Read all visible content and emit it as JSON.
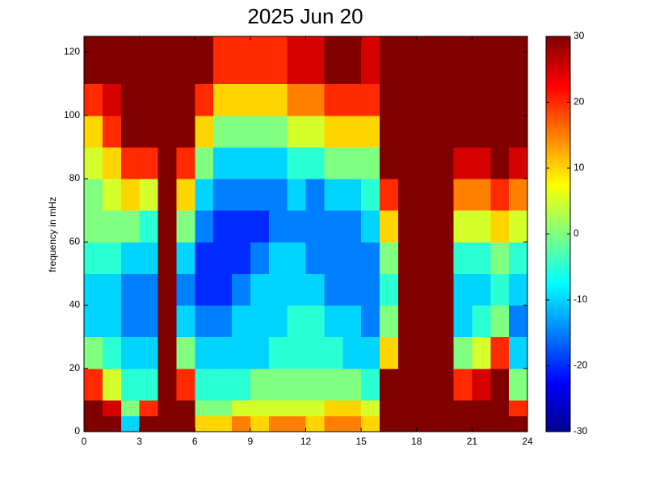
{
  "chart_data": {
    "type": "heatmap",
    "title": "2025 Jun 20",
    "y_label": "frequency in mHz",
    "colormap": "jet",
    "x_bins": [
      0,
      1,
      2,
      3,
      4,
      5,
      6,
      7,
      8,
      9,
      10,
      11,
      12,
      13,
      14,
      15,
      16,
      17,
      18,
      19,
      20,
      21,
      22,
      23,
      24
    ],
    "y_bins": [
      0,
      5,
      10,
      20,
      30,
      40,
      50,
      60,
      70,
      80,
      90,
      100,
      110,
      125
    ],
    "values": [
      [
        30,
        30,
        -10,
        30,
        30,
        30,
        10,
        10,
        15,
        10,
        15,
        15,
        10,
        15,
        15,
        10,
        30,
        30,
        30,
        30,
        30,
        30,
        30,
        30
      ],
      [
        30,
        25,
        0,
        20,
        30,
        30,
        0,
        0,
        5,
        5,
        5,
        5,
        5,
        10,
        10,
        5,
        30,
        30,
        30,
        30,
        30,
        30,
        30,
        20
      ],
      [
        20,
        5,
        -5,
        -5,
        30,
        20,
        -5,
        -5,
        -5,
        0,
        0,
        0,
        0,
        0,
        0,
        -5,
        30,
        30,
        30,
        30,
        20,
        25,
        30,
        0
      ],
      [
        0,
        -5,
        -10,
        -10,
        30,
        0,
        -10,
        -10,
        -10,
        -10,
        -5,
        -5,
        -5,
        -5,
        -10,
        -10,
        10,
        30,
        30,
        30,
        0,
        5,
        20,
        -10
      ],
      [
        -10,
        -10,
        -15,
        -15,
        30,
        -10,
        -15,
        -15,
        -10,
        -10,
        -10,
        -5,
        -5,
        -10,
        -10,
        -15,
        0,
        30,
        30,
        30,
        -10,
        -5,
        0,
        -15
      ],
      [
        -10,
        -10,
        -15,
        -15,
        30,
        -15,
        -20,
        -20,
        -15,
        -10,
        -10,
        -10,
        -10,
        -15,
        -15,
        -15,
        -5,
        30,
        30,
        30,
        -10,
        -10,
        -5,
        -10
      ],
      [
        -5,
        -5,
        -10,
        -10,
        30,
        -10,
        -20,
        -20,
        -20,
        -15,
        -10,
        -10,
        -15,
        -15,
        -15,
        -15,
        0,
        30,
        30,
        30,
        -5,
        -5,
        0,
        -5
      ],
      [
        0,
        0,
        0,
        -5,
        30,
        0,
        -15,
        -20,
        -20,
        -20,
        -15,
        -15,
        -15,
        -15,
        -15,
        -10,
        10,
        30,
        30,
        30,
        5,
        5,
        10,
        5
      ],
      [
        0,
        5,
        10,
        5,
        30,
        10,
        -10,
        -15,
        -15,
        -15,
        -15,
        -10,
        -15,
        -10,
        -10,
        -5,
        20,
        30,
        30,
        30,
        15,
        15,
        20,
        15
      ],
      [
        5,
        10,
        20,
        20,
        30,
        20,
        0,
        -10,
        -10,
        -10,
        -10,
        -5,
        -5,
        0,
        0,
        0,
        30,
        30,
        30,
        30,
        25,
        25,
        30,
        25
      ],
      [
        10,
        20,
        30,
        30,
        30,
        30,
        10,
        0,
        0,
        0,
        0,
        5,
        5,
        10,
        10,
        10,
        30,
        30,
        30,
        30,
        30,
        30,
        30,
        30
      ],
      [
        20,
        25,
        30,
        30,
        30,
        30,
        20,
        10,
        10,
        10,
        10,
        15,
        15,
        20,
        20,
        20,
        30,
        30,
        30,
        30,
        30,
        30,
        30,
        30
      ],
      [
        30,
        30,
        30,
        30,
        30,
        30,
        30,
        20,
        20,
        20,
        20,
        25,
        25,
        30,
        30,
        25,
        30,
        30,
        30,
        30,
        30,
        30,
        30,
        30
      ]
    ],
    "xlim": [
      0,
      24
    ],
    "xticks": [
      0,
      3,
      6,
      9,
      12,
      15,
      18,
      21,
      24
    ],
    "ylim": [
      0,
      125
    ],
    "yticks": [
      0,
      20,
      40,
      60,
      80,
      100,
      120
    ],
    "clim": [
      -30,
      30
    ],
    "cticks": [
      -30,
      -20,
      -10,
      0,
      10,
      20,
      30
    ]
  }
}
